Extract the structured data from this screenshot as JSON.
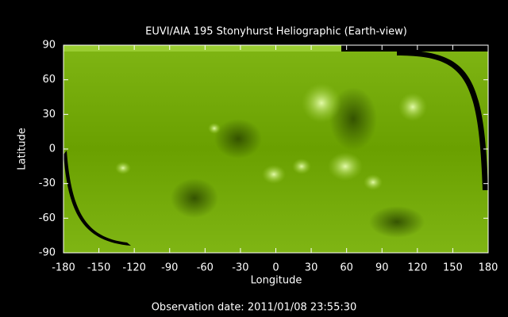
{
  "chart_data": {
    "type": "image",
    "title": "EUVI/AIA 195 Stonyhurst Heliographic (Earth-view)",
    "xlabel": "Longitude",
    "ylabel": "Latitude",
    "annotation": "Observation date: 2011/01/08 23:55:30",
    "xlim": [
      -180,
      180
    ],
    "ylim": [
      -90,
      90
    ],
    "xticks": [
      -180,
      -150,
      -120,
      -90,
      -60,
      -30,
      0,
      30,
      60,
      90,
      120,
      150,
      180
    ],
    "yticks": [
      -90,
      -60,
      -30,
      0,
      30,
      60,
      90
    ]
  }
}
